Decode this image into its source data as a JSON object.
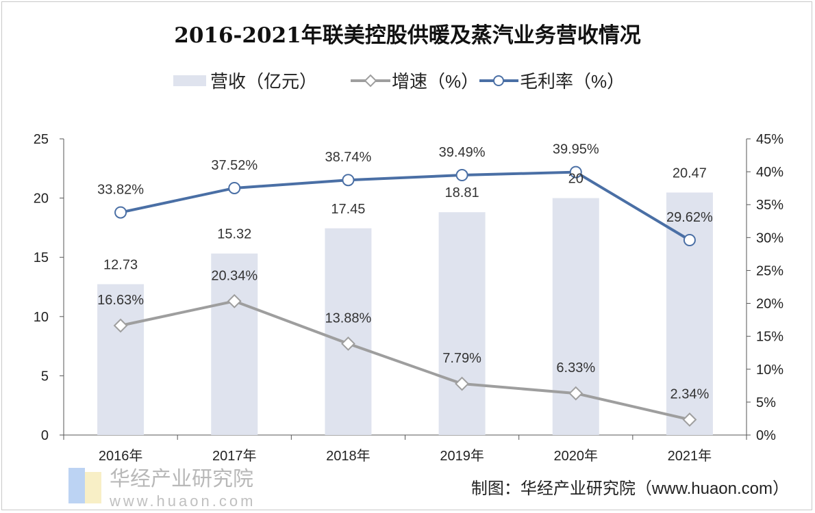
{
  "chart_data": {
    "type": "bar+line",
    "title": "2016-2021年联美控股供暖及蒸汽业务营收情况",
    "categories": [
      "2016年",
      "2017年",
      "2018年",
      "2019年",
      "2020年",
      "2021年"
    ],
    "series": [
      {
        "name": "营收（亿元）",
        "type": "bar",
        "axis": "left",
        "values": [
          12.73,
          15.32,
          17.45,
          18.81,
          20,
          20.47
        ],
        "labels": [
          "12.73",
          "15.32",
          "17.45",
          "18.81",
          "20",
          "20.47"
        ],
        "color": "#dfe3ee"
      },
      {
        "name": "增速（%）",
        "type": "line",
        "axis": "right",
        "marker": "diamond",
        "values": [
          16.63,
          20.34,
          13.88,
          7.79,
          6.33,
          2.34
        ],
        "labels": [
          "16.63%",
          "20.34%",
          "13.88%",
          "7.79%",
          "6.33%",
          "2.34%"
        ],
        "color": "#9e9e9e"
      },
      {
        "name": "毛利率（%）",
        "type": "line",
        "axis": "right",
        "marker": "circle",
        "values": [
          33.82,
          37.52,
          38.74,
          39.49,
          39.95,
          29.62
        ],
        "labels": [
          "33.82%",
          "37.52%",
          "38.74%",
          "39.49%",
          "39.95%",
          "29.62%"
        ],
        "color": "#4a6fa5"
      }
    ],
    "y_left": {
      "range": [
        0,
        25
      ],
      "ticks": [
        "0",
        "5",
        "10",
        "15",
        "20",
        "25"
      ]
    },
    "y_right": {
      "range": [
        0,
        45
      ],
      "ticks": [
        "0%",
        "5%",
        "10%",
        "15%",
        "20%",
        "25%",
        "30%",
        "35%",
        "40%",
        "45%"
      ]
    },
    "grid": false,
    "legend": "top"
  },
  "footer": "制图：华经产业研究院（www.huaon.com）",
  "watermark": {
    "text": "华经产业研究院",
    "url": "www.huaon.com"
  }
}
